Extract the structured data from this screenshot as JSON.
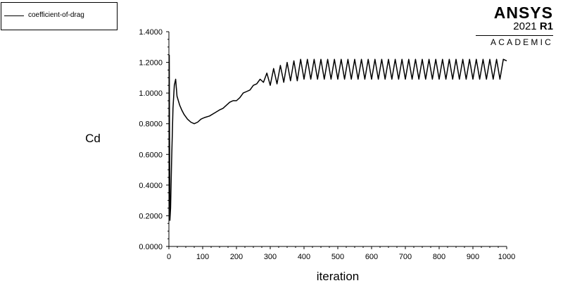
{
  "legend": {
    "label": "coefficient-of-drag"
  },
  "logo": {
    "brand": "ANSYS",
    "year": "2021",
    "release": "R1",
    "edition": "ACADEMIC"
  },
  "chart_data": {
    "type": "line",
    "title": "",
    "xlabel": "iteration",
    "ylabel": "Cd",
    "xlim": [
      0,
      1000
    ],
    "ylim": [
      0,
      1.4
    ],
    "xticks": [
      0,
      100,
      200,
      300,
      400,
      500,
      600,
      700,
      800,
      900,
      1000
    ],
    "xtick_labels": [
      "0",
      "100",
      "200",
      "300",
      "400",
      "500",
      "600",
      "700",
      "800",
      "900",
      "1000"
    ],
    "yticks": [
      0,
      0.2,
      0.4,
      0.6,
      0.8,
      1.0,
      1.2,
      1.4
    ],
    "ytick_labels": [
      "0.0000",
      "0.2000",
      "0.4000",
      "0.6000",
      "0.8000",
      "1.0000",
      "1.2000",
      "1.4000"
    ],
    "grid": false,
    "legend_position": "top-left",
    "series": [
      {
        "name": "coefficient-of-drag",
        "color": "#000000",
        "x": [
          1,
          3,
          5,
          8,
          12,
          16,
          20,
          24,
          28,
          32,
          38,
          45,
          55,
          65,
          75,
          85,
          95,
          105,
          120,
          135,
          150,
          160,
          170,
          180,
          190,
          200,
          210,
          220,
          230,
          240,
          250,
          260,
          270,
          280,
          290,
          300,
          310,
          320,
          330,
          340,
          350,
          360,
          370,
          380,
          390,
          400,
          410,
          420,
          430,
          440,
          450,
          460,
          470,
          480,
          490,
          500,
          510,
          520,
          530,
          540,
          550,
          560,
          570,
          580,
          590,
          600,
          610,
          620,
          630,
          640,
          650,
          660,
          670,
          680,
          690,
          700,
          710,
          720,
          730,
          740,
          750,
          760,
          770,
          780,
          790,
          800,
          810,
          820,
          830,
          840,
          850,
          860,
          870,
          880,
          890,
          900,
          910,
          920,
          930,
          940,
          950,
          960,
          970,
          980,
          990,
          1000
        ],
        "y": [
          1.25,
          0.17,
          0.25,
          0.55,
          0.9,
          1.05,
          1.09,
          0.98,
          0.95,
          0.92,
          0.89,
          0.86,
          0.83,
          0.81,
          0.8,
          0.81,
          0.83,
          0.84,
          0.85,
          0.87,
          0.89,
          0.9,
          0.92,
          0.94,
          0.95,
          0.95,
          0.97,
          1.0,
          1.01,
          1.02,
          1.05,
          1.06,
          1.09,
          1.07,
          1.13,
          1.05,
          1.16,
          1.06,
          1.18,
          1.07,
          1.2,
          1.08,
          1.21,
          1.08,
          1.22,
          1.09,
          1.22,
          1.09,
          1.22,
          1.09,
          1.22,
          1.09,
          1.22,
          1.09,
          1.22,
          1.09,
          1.22,
          1.09,
          1.22,
          1.09,
          1.22,
          1.09,
          1.22,
          1.09,
          1.22,
          1.09,
          1.22,
          1.09,
          1.22,
          1.09,
          1.22,
          1.09,
          1.22,
          1.09,
          1.22,
          1.09,
          1.22,
          1.09,
          1.22,
          1.09,
          1.22,
          1.09,
          1.22,
          1.09,
          1.22,
          1.09,
          1.22,
          1.09,
          1.22,
          1.09,
          1.22,
          1.09,
          1.22,
          1.09,
          1.22,
          1.09,
          1.22,
          1.09,
          1.22,
          1.09,
          1.22,
          1.09,
          1.22,
          1.09,
          1.22,
          1.21
        ]
      }
    ]
  }
}
